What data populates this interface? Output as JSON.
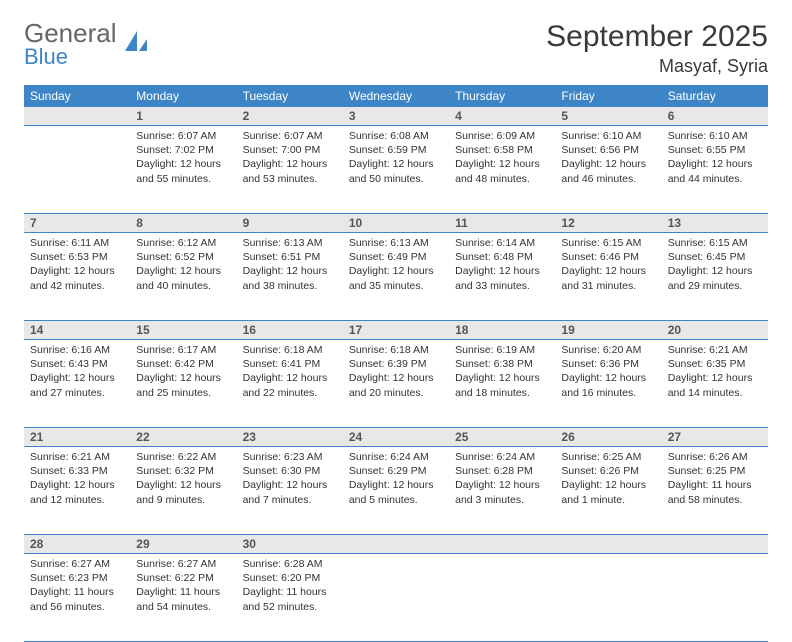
{
  "logo": {
    "word1": "General",
    "word2": "Blue"
  },
  "title": "September 2025",
  "location": "Masyaf, Syria",
  "colors": {
    "header_bg": "#3d85c6",
    "header_text": "#ffffff",
    "daynum_bg": "#e8e8e8",
    "border": "#3d85c6",
    "body_text": "#333333"
  },
  "calendar": {
    "type": "table",
    "columns": [
      "Sunday",
      "Monday",
      "Tuesday",
      "Wednesday",
      "Thursday",
      "Friday",
      "Saturday"
    ],
    "weeks": [
      [
        null,
        {
          "n": "1",
          "sunrise": "6:07 AM",
          "sunset": "7:02 PM",
          "daylight": "12 hours and 55 minutes."
        },
        {
          "n": "2",
          "sunrise": "6:07 AM",
          "sunset": "7:00 PM",
          "daylight": "12 hours and 53 minutes."
        },
        {
          "n": "3",
          "sunrise": "6:08 AM",
          "sunset": "6:59 PM",
          "daylight": "12 hours and 50 minutes."
        },
        {
          "n": "4",
          "sunrise": "6:09 AM",
          "sunset": "6:58 PM",
          "daylight": "12 hours and 48 minutes."
        },
        {
          "n": "5",
          "sunrise": "6:10 AM",
          "sunset": "6:56 PM",
          "daylight": "12 hours and 46 minutes."
        },
        {
          "n": "6",
          "sunrise": "6:10 AM",
          "sunset": "6:55 PM",
          "daylight": "12 hours and 44 minutes."
        }
      ],
      [
        {
          "n": "7",
          "sunrise": "6:11 AM",
          "sunset": "6:53 PM",
          "daylight": "12 hours and 42 minutes."
        },
        {
          "n": "8",
          "sunrise": "6:12 AM",
          "sunset": "6:52 PM",
          "daylight": "12 hours and 40 minutes."
        },
        {
          "n": "9",
          "sunrise": "6:13 AM",
          "sunset": "6:51 PM",
          "daylight": "12 hours and 38 minutes."
        },
        {
          "n": "10",
          "sunrise": "6:13 AM",
          "sunset": "6:49 PM",
          "daylight": "12 hours and 35 minutes."
        },
        {
          "n": "11",
          "sunrise": "6:14 AM",
          "sunset": "6:48 PM",
          "daylight": "12 hours and 33 minutes."
        },
        {
          "n": "12",
          "sunrise": "6:15 AM",
          "sunset": "6:46 PM",
          "daylight": "12 hours and 31 minutes."
        },
        {
          "n": "13",
          "sunrise": "6:15 AM",
          "sunset": "6:45 PM",
          "daylight": "12 hours and 29 minutes."
        }
      ],
      [
        {
          "n": "14",
          "sunrise": "6:16 AM",
          "sunset": "6:43 PM",
          "daylight": "12 hours and 27 minutes."
        },
        {
          "n": "15",
          "sunrise": "6:17 AM",
          "sunset": "6:42 PM",
          "daylight": "12 hours and 25 minutes."
        },
        {
          "n": "16",
          "sunrise": "6:18 AM",
          "sunset": "6:41 PM",
          "daylight": "12 hours and 22 minutes."
        },
        {
          "n": "17",
          "sunrise": "6:18 AM",
          "sunset": "6:39 PM",
          "daylight": "12 hours and 20 minutes."
        },
        {
          "n": "18",
          "sunrise": "6:19 AM",
          "sunset": "6:38 PM",
          "daylight": "12 hours and 18 minutes."
        },
        {
          "n": "19",
          "sunrise": "6:20 AM",
          "sunset": "6:36 PM",
          "daylight": "12 hours and 16 minutes."
        },
        {
          "n": "20",
          "sunrise": "6:21 AM",
          "sunset": "6:35 PM",
          "daylight": "12 hours and 14 minutes."
        }
      ],
      [
        {
          "n": "21",
          "sunrise": "6:21 AM",
          "sunset": "6:33 PM",
          "daylight": "12 hours and 12 minutes."
        },
        {
          "n": "22",
          "sunrise": "6:22 AM",
          "sunset": "6:32 PM",
          "daylight": "12 hours and 9 minutes."
        },
        {
          "n": "23",
          "sunrise": "6:23 AM",
          "sunset": "6:30 PM",
          "daylight": "12 hours and 7 minutes."
        },
        {
          "n": "24",
          "sunrise": "6:24 AM",
          "sunset": "6:29 PM",
          "daylight": "12 hours and 5 minutes."
        },
        {
          "n": "25",
          "sunrise": "6:24 AM",
          "sunset": "6:28 PM",
          "daylight": "12 hours and 3 minutes."
        },
        {
          "n": "26",
          "sunrise": "6:25 AM",
          "sunset": "6:26 PM",
          "daylight": "12 hours and 1 minute."
        },
        {
          "n": "27",
          "sunrise": "6:26 AM",
          "sunset": "6:25 PM",
          "daylight": "11 hours and 58 minutes."
        }
      ],
      [
        {
          "n": "28",
          "sunrise": "6:27 AM",
          "sunset": "6:23 PM",
          "daylight": "11 hours and 56 minutes."
        },
        {
          "n": "29",
          "sunrise": "6:27 AM",
          "sunset": "6:22 PM",
          "daylight": "11 hours and 54 minutes."
        },
        {
          "n": "30",
          "sunrise": "6:28 AM",
          "sunset": "6:20 PM",
          "daylight": "11 hours and 52 minutes."
        },
        null,
        null,
        null,
        null
      ]
    ],
    "labels": {
      "sunrise": "Sunrise:",
      "sunset": "Sunset:",
      "daylight": "Daylight:"
    }
  }
}
